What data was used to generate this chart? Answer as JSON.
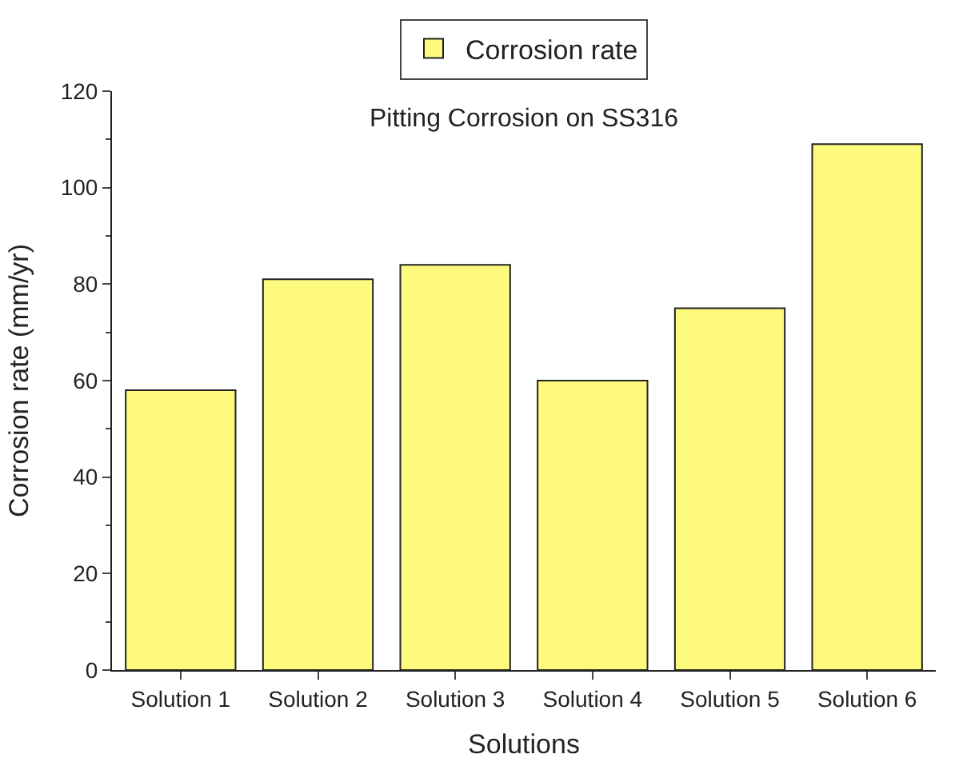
{
  "chart_data": {
    "type": "bar",
    "title": "Pitting Corrosion on SS316",
    "xlabel": "Solutions",
    "ylabel": "Corrosion rate (mm/yr)",
    "categories": [
      "Solution 1",
      "Solution 2",
      "Solution 3",
      "Solution 4",
      "Solution 5",
      "Solution 6"
    ],
    "series": [
      {
        "name": "Corrosion rate",
        "color": "#fdfa7e",
        "values": [
          58,
          81,
          84,
          60,
          75,
          109
        ]
      }
    ],
    "ylim": [
      0,
      120
    ],
    "yticks": [
      0,
      20,
      40,
      60,
      80,
      100,
      120
    ],
    "legend": "top"
  }
}
